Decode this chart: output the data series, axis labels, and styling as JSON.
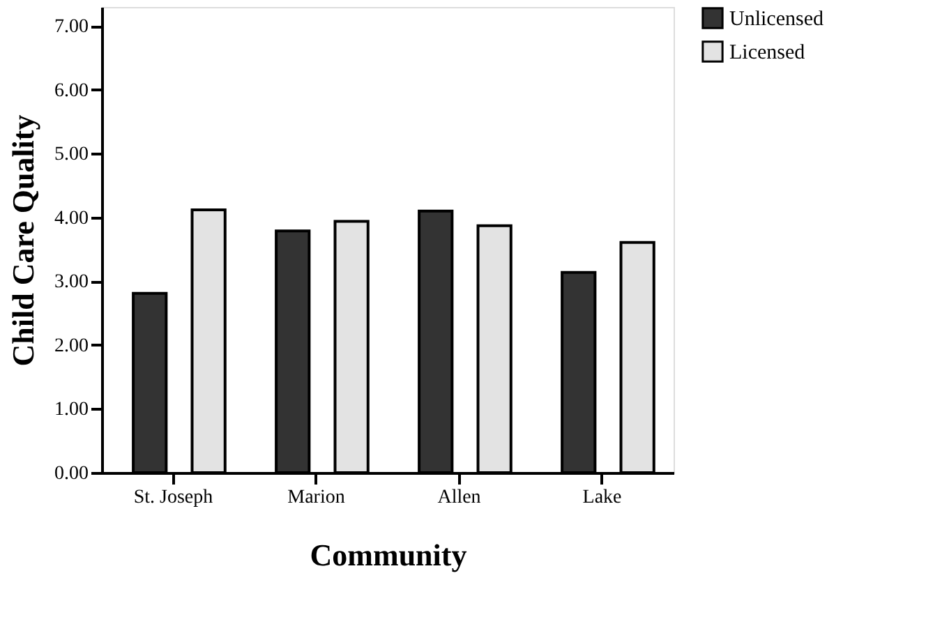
{
  "chart_data": {
    "type": "bar",
    "xlabel": "Community",
    "ylabel": "Child Care Quality",
    "categories": [
      "St. Joseph",
      "Marion",
      "Allen",
      "Lake"
    ],
    "series": [
      {
        "name": "Unlicensed",
        "color": "#333333",
        "values": [
          2.81,
          3.79,
          4.1,
          3.14
        ]
      },
      {
        "name": "Licensed",
        "color": "#e3e3e3",
        "values": [
          4.12,
          3.94,
          3.87,
          3.61
        ]
      }
    ],
    "ylim": [
      0,
      7.3
    ],
    "yticks": [
      {
        "value": 0,
        "label": "0.00"
      },
      {
        "value": 1,
        "label": "1.00"
      },
      {
        "value": 2,
        "label": "2.00"
      },
      {
        "value": 3,
        "label": "3.00"
      },
      {
        "value": 4,
        "label": "4.00"
      },
      {
        "value": 5,
        "label": "5.00"
      },
      {
        "value": 6,
        "label": "6.00"
      },
      {
        "value": 7,
        "label": "7.00"
      }
    ],
    "grid": false,
    "legend": "top right"
  }
}
